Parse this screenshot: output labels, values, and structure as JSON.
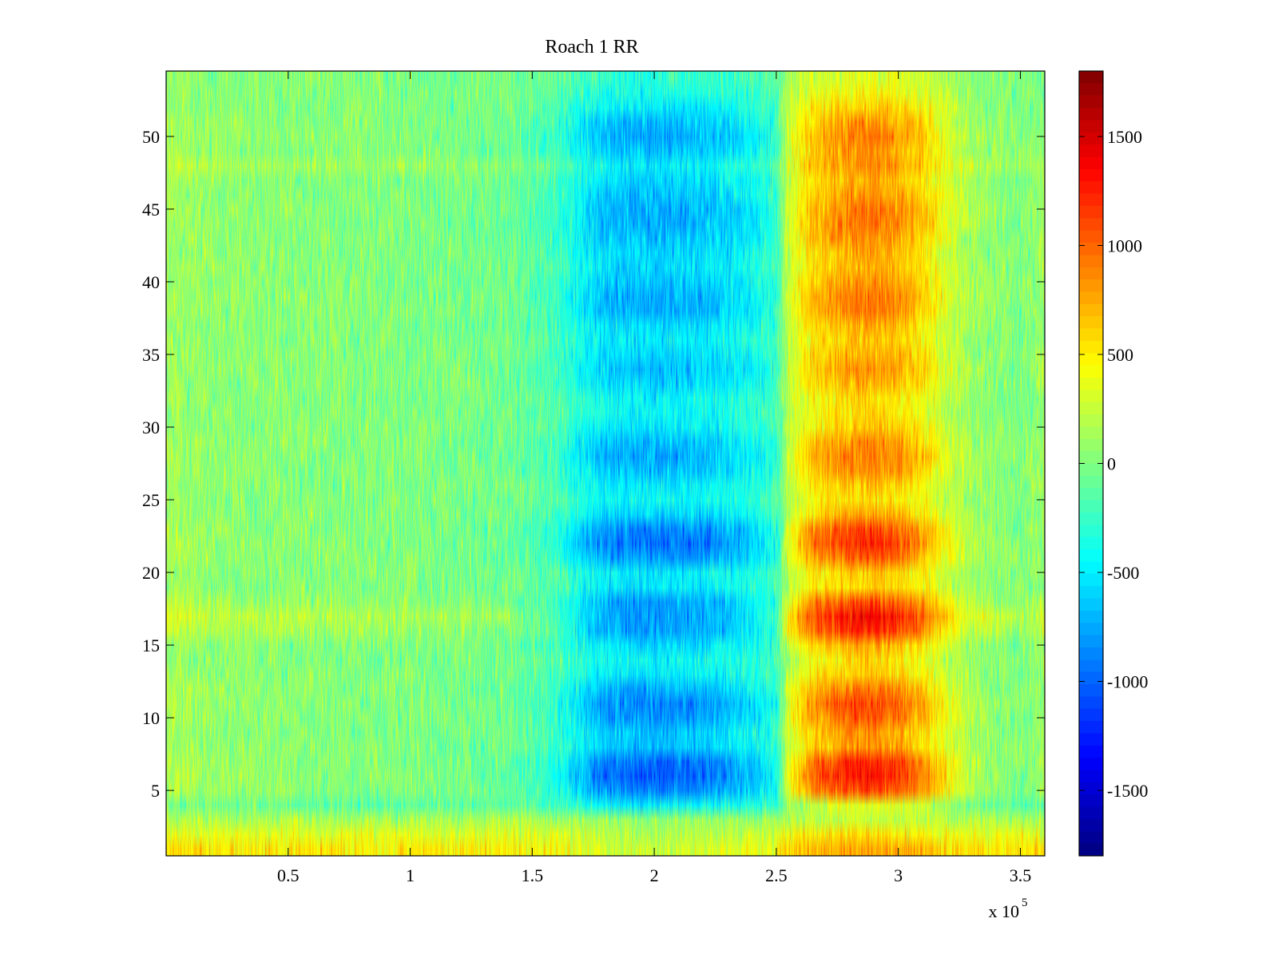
{
  "chart_data": {
    "type": "heatmap",
    "title": "Roach 1 RR",
    "xlabel": "",
    "ylabel": "",
    "xlim": [
      0,
      360000
    ],
    "ylim": [
      0.5,
      54.5
    ],
    "x_ticks": [
      50000,
      100000,
      150000,
      200000,
      250000,
      300000,
      350000
    ],
    "x_tick_labels": [
      "0.5",
      "1",
      "1.5",
      "2",
      "2.5",
      "3",
      "3.5"
    ],
    "x_exponent_label": "x 10",
    "x_exponent_power": "5",
    "y_ticks": [
      5,
      10,
      15,
      20,
      25,
      30,
      35,
      40,
      45,
      50
    ],
    "y_tick_labels": [
      "5",
      "10",
      "15",
      "20",
      "25",
      "30",
      "35",
      "40",
      "45",
      "50"
    ],
    "rows": 54,
    "colormap": "jet",
    "clim": [
      -1800,
      1800
    ],
    "colorbar": {
      "ticks": [
        -1500,
        -1000,
        -500,
        0,
        500,
        1000,
        1500
      ],
      "tick_labels": [
        "-1500",
        "-1000",
        "-500",
        "0",
        "500",
        "1000",
        "1500"
      ]
    },
    "profile": {
      "x": [
        0,
        20000,
        60000,
        100000,
        140000,
        160000,
        170000,
        180000,
        200000,
        220000,
        240000,
        250000,
        255000,
        265000,
        280000,
        290000,
        300000,
        310000,
        320000,
        330000,
        340000,
        350000,
        360000
      ],
      "values": [
        150,
        60,
        30,
        0,
        -60,
        -250,
        -500,
        -700,
        -750,
        -700,
        -500,
        -300,
        300,
        700,
        900,
        950,
        850,
        650,
        350,
        150,
        50,
        0,
        100
      ]
    },
    "row_gain": [
      0.3,
      0.2,
      0.1,
      0.5,
      1.2,
      1.4,
      1.3,
      0.9,
      0.9,
      1.1,
      1.2,
      1.0,
      0.7,
      0.6,
      0.8,
      1.2,
      1.3,
      1.1,
      0.7,
      0.7,
      1.1,
      1.3,
      1.2,
      0.8,
      0.6,
      0.7,
      0.9,
      1.0,
      0.9,
      0.7,
      0.6,
      0.6,
      0.8,
      0.9,
      0.8,
      0.7,
      0.8,
      1.0,
      1.0,
      0.9,
      0.8,
      0.8,
      0.9,
      1.0,
      1.0,
      0.9,
      0.8,
      0.8,
      0.9,
      1.0,
      0.9,
      0.7,
      0.5,
      0.4
    ],
    "row_offset": [
      500,
      350,
      150,
      -100,
      0,
      0,
      0,
      0,
      0,
      0,
      0,
      0,
      0,
      0,
      0,
      100,
      150,
      50,
      0,
      0,
      0,
      0,
      0,
      0,
      0,
      0,
      0,
      0,
      0,
      0,
      0,
      0,
      0,
      0,
      0,
      0,
      0,
      0,
      0,
      0,
      0,
      0,
      0,
      0,
      0,
      0,
      0,
      100,
      0,
      0,
      0,
      0,
      0,
      0
    ],
    "noise_amplitude": 220
  }
}
